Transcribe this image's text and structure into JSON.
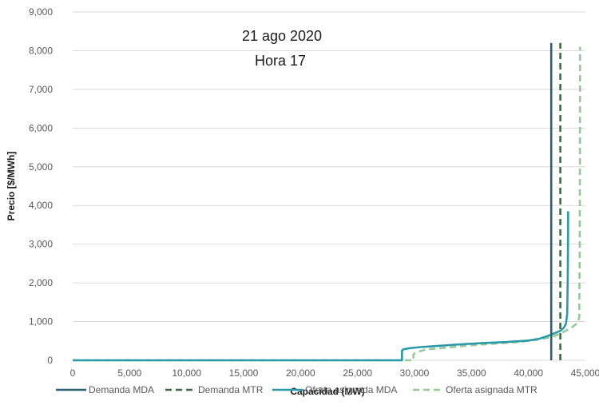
{
  "chart_data": {
    "type": "line",
    "title": "",
    "annotations": [
      "21 ago 2020",
      "Hora 17"
    ],
    "xlabel": "Capacidad (MW)",
    "ylabel": "Precio [$/MWh]",
    "xlim": [
      0,
      45000
    ],
    "ylim": [
      0,
      9000
    ],
    "x_ticks": [
      0,
      5000,
      10000,
      15000,
      20000,
      25000,
      30000,
      35000,
      40000,
      45000
    ],
    "x_tick_labels": [
      "0",
      "5,000",
      "10,000",
      "15,000",
      "20,000",
      "25,000",
      "30,000",
      "35,000",
      "40,000",
      "45,000"
    ],
    "y_ticks": [
      0,
      1000,
      2000,
      3000,
      4000,
      5000,
      6000,
      7000,
      8000,
      9000
    ],
    "y_tick_labels": [
      "0",
      "1,000",
      "2,000",
      "3,000",
      "4,000",
      "5,000",
      "6,000",
      "7,000",
      "8,000",
      "9,000"
    ],
    "grid": "horizontal",
    "legend_position": "bottom",
    "series": [
      {
        "name": "Demanda MDA",
        "color": "#2e5f73",
        "style": "solid",
        "points": [
          [
            42000,
            0
          ],
          [
            42000,
            8200
          ]
        ]
      },
      {
        "name": "Demanda MTR",
        "color": "#3e6b45",
        "style": "dashed",
        "points": [
          [
            42800,
            0
          ],
          [
            42800,
            8200
          ]
        ]
      },
      {
        "name": "Oferta asignada MDA",
        "color": "#2a9aa8",
        "style": "solid",
        "points": [
          [
            0,
            0
          ],
          [
            28900,
            0
          ],
          [
            28900,
            250
          ],
          [
            29000,
            280
          ],
          [
            29500,
            310
          ],
          [
            30500,
            340
          ],
          [
            32000,
            370
          ],
          [
            34000,
            410
          ],
          [
            36000,
            445
          ],
          [
            38000,
            470
          ],
          [
            40000,
            510
          ],
          [
            41000,
            560
          ],
          [
            41800,
            640
          ],
          [
            42300,
            700
          ],
          [
            42800,
            760
          ],
          [
            43100,
            840
          ],
          [
            43300,
            950
          ],
          [
            43400,
            1200
          ],
          [
            43450,
            2200
          ],
          [
            43470,
            3200
          ],
          [
            43480,
            3850
          ]
        ]
      },
      {
        "name": "Oferta asignada MTR",
        "color": "#95c995",
        "style": "dashed",
        "points": [
          [
            0,
            0
          ],
          [
            29900,
            0
          ],
          [
            29900,
            150
          ],
          [
            30100,
            200
          ],
          [
            31000,
            280
          ],
          [
            33000,
            330
          ],
          [
            35000,
            390
          ],
          [
            37000,
            430
          ],
          [
            39000,
            470
          ],
          [
            40500,
            520
          ],
          [
            41500,
            570
          ],
          [
            42300,
            630
          ],
          [
            43000,
            720
          ],
          [
            43800,
            850
          ],
          [
            44300,
            960
          ],
          [
            44450,
            1100
          ],
          [
            44500,
            3000
          ],
          [
            44520,
            6000
          ],
          [
            44530,
            8100
          ]
        ]
      }
    ]
  }
}
